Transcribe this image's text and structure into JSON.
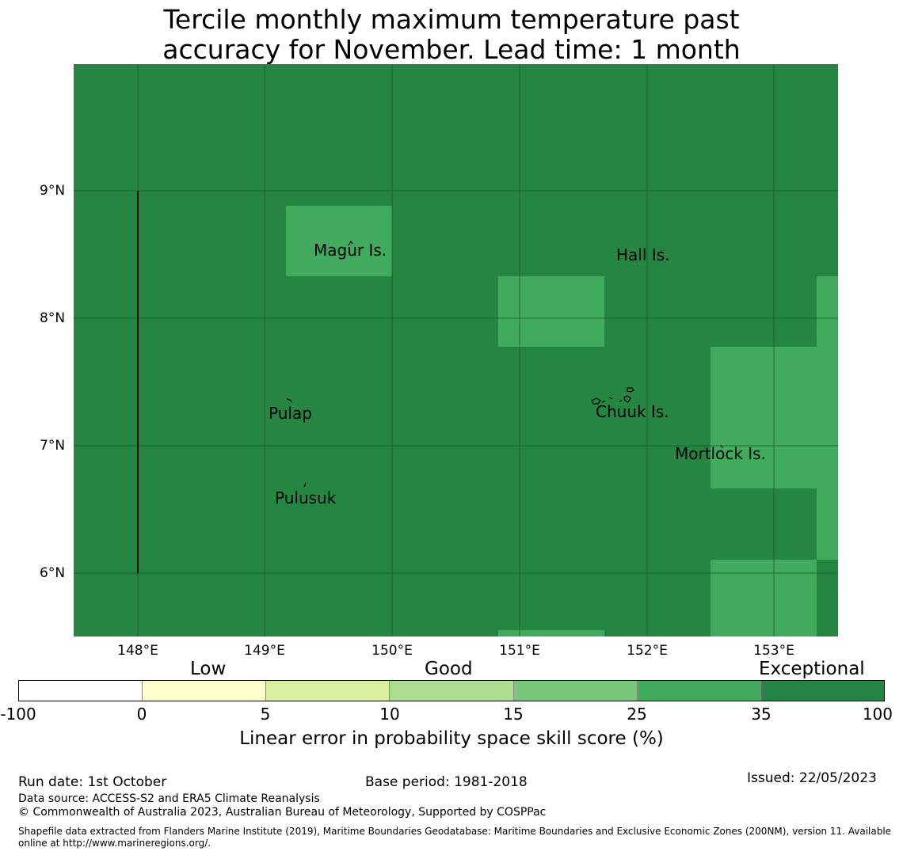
{
  "title": {
    "line1": "Tercile monthly maximum temperature past",
    "line2": "accuracy for November. Lead time: 1 month"
  },
  "map": {
    "colors": {
      "exceptional": "#248641",
      "very_good": "#41ab5d",
      "grid": "#17582a",
      "coast": "#000000"
    },
    "lat_ticks": [
      "9°N",
      "8°N",
      "7°N",
      "6°N"
    ],
    "lon_ticks": [
      "148°E",
      "149°E",
      "150°E",
      "151°E",
      "152°E",
      "153°E"
    ],
    "place_labels": {
      "magur": "Magur Is.",
      "hall": "Hall Is.",
      "pulap": "Pulap",
      "chuuk": "Chuuk Is.",
      "mortlock": "Mortlock Is.",
      "pulusuk": "Pulusuk"
    }
  },
  "colorbar": {
    "categories": [
      "Low",
      "Good",
      "Exceptional"
    ],
    "ticks": [
      "-100",
      "0",
      "5",
      "10",
      "15",
      "25",
      "35",
      "100"
    ],
    "colors": [
      "#ffffff",
      "#ffffcc",
      "#d9f0a3",
      "#addd8e",
      "#78c679",
      "#41ab5d",
      "#238443"
    ],
    "label": "Linear error in probability space skill score (%)"
  },
  "footer": {
    "run_date": "Run date: 1st October",
    "base_period": "Base period: 1981-2018",
    "issued": "Issued: 22/05/2023",
    "data_source": "Data source: ACCESS-S2 and ERA5 Climate Reanalysis",
    "copyright": "© Commonwealth of Australia 2023, Australian Bureau of Meteorology, Supported by COSPPac",
    "shapefile_line1": "Shapefile data extracted from Flanders Marine Institute (2019), Maritime Boundaries Geodatabase: Maritime Boundaries and Exclusive Economic Zones (200NM), version 11. Available",
    "shapefile_line2": "online at http://www.marineregions.org/."
  }
}
